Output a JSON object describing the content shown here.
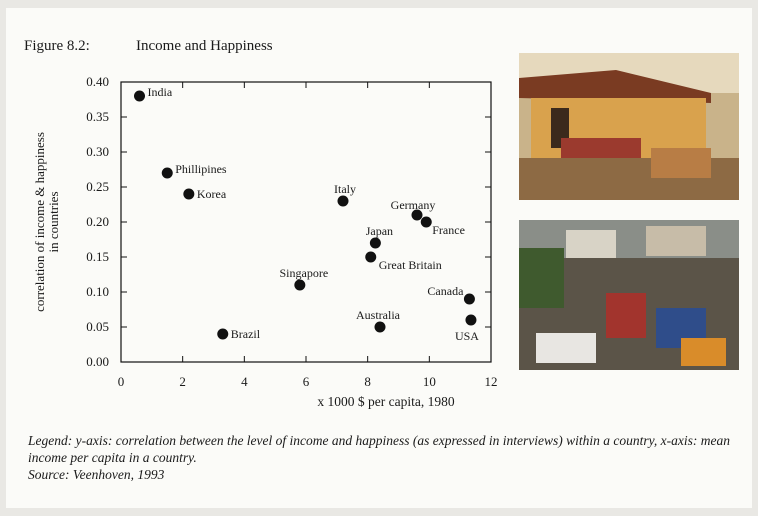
{
  "chart_data": {
    "type": "scatter",
    "figure_label": "Figure 8.2:",
    "title": "Income and Happiness",
    "ylabel": [
      "correlation of income & happiness",
      "in countries"
    ],
    "xlabel": "x 1000 $ per capita, 1980",
    "labels": [
      "India",
      "Phillipines",
      "Korea",
      "Brazil",
      "Singapore",
      "Italy",
      "Japan",
      "Great Britain",
      "Australia",
      "Germany",
      "France",
      "Canada",
      "USA"
    ],
    "x": [
      0.6,
      1.5,
      2.2,
      3.3,
      5.8,
      7.2,
      8.25,
      8.1,
      8.4,
      9.6,
      9.9,
      11.3,
      11.35
    ],
    "values": [
      0.38,
      0.27,
      0.24,
      0.04,
      0.11,
      0.23,
      0.17,
      0.15,
      0.05,
      0.21,
      0.2,
      0.09,
      0.06
    ],
    "color": "#111111",
    "xlim": [
      0,
      12
    ],
    "xticks": [
      0,
      2,
      4,
      6,
      8,
      10,
      12
    ],
    "ylim": [
      0,
      0.4
    ],
    "yticks": [
      {
        "value": 0,
        "label": "0.00"
      },
      {
        "value": 0.05,
        "label": "0.05"
      },
      {
        "value": 0.1,
        "label": "0.10"
      },
      {
        "value": 0.15,
        "label": "0.15"
      },
      {
        "value": 0.2,
        "label": "0.20"
      },
      {
        "value": 0.25,
        "label": "0.25"
      },
      {
        "value": 0.3,
        "label": "0.30"
      },
      {
        "value": 0.35,
        "label": "0.35"
      },
      {
        "value": 0.4,
        "label": "0.40"
      }
    ]
  },
  "caption": {
    "legend": "Legend: y-axis: correlation between the level of income and happiness (as expressed in interviews) within a country, x-axis: mean income per capita in a country.",
    "source": "Source:  Veenhoven, 1993"
  }
}
